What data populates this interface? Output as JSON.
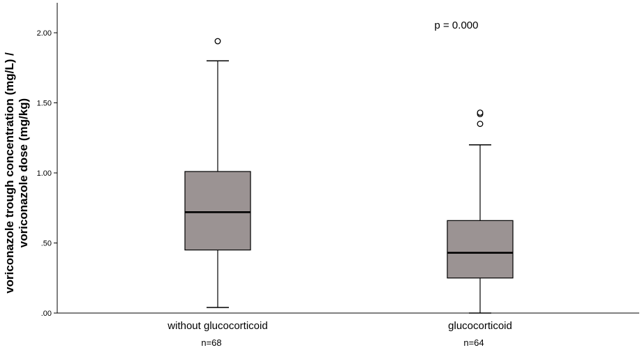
{
  "chart_data": {
    "type": "boxplot",
    "ylabel_lines": [
      "voriconazole trough concentration (mg/L) /",
      "voriconazole dose (mg/kg)"
    ],
    "ylim": [
      0,
      2.2
    ],
    "yticks": [
      {
        "value": 0.0,
        "label": ".00"
      },
      {
        "value": 0.5,
        "label": ".50"
      },
      {
        "value": 1.0,
        "label": "1.00"
      },
      {
        "value": 1.5,
        "label": "1.50"
      },
      {
        "value": 2.0,
        "label": "2.00"
      }
    ],
    "annotation": "p = 0.000",
    "box_color": "#9b9393",
    "categories": [
      {
        "label": "without glucocorticoid",
        "n_label": "n=68",
        "whisker_low": 0.04,
        "q1": 0.45,
        "median": 0.72,
        "q3": 1.01,
        "whisker_high": 1.8,
        "outliers": [
          1.94
        ]
      },
      {
        "label": "glucocorticoid",
        "n_label": "n=64",
        "whisker_low": 0.0,
        "q1": 0.25,
        "median": 0.43,
        "q3": 0.66,
        "whisker_high": 1.2,
        "outliers": [
          1.35,
          1.42,
          1.43
        ]
      }
    ]
  }
}
